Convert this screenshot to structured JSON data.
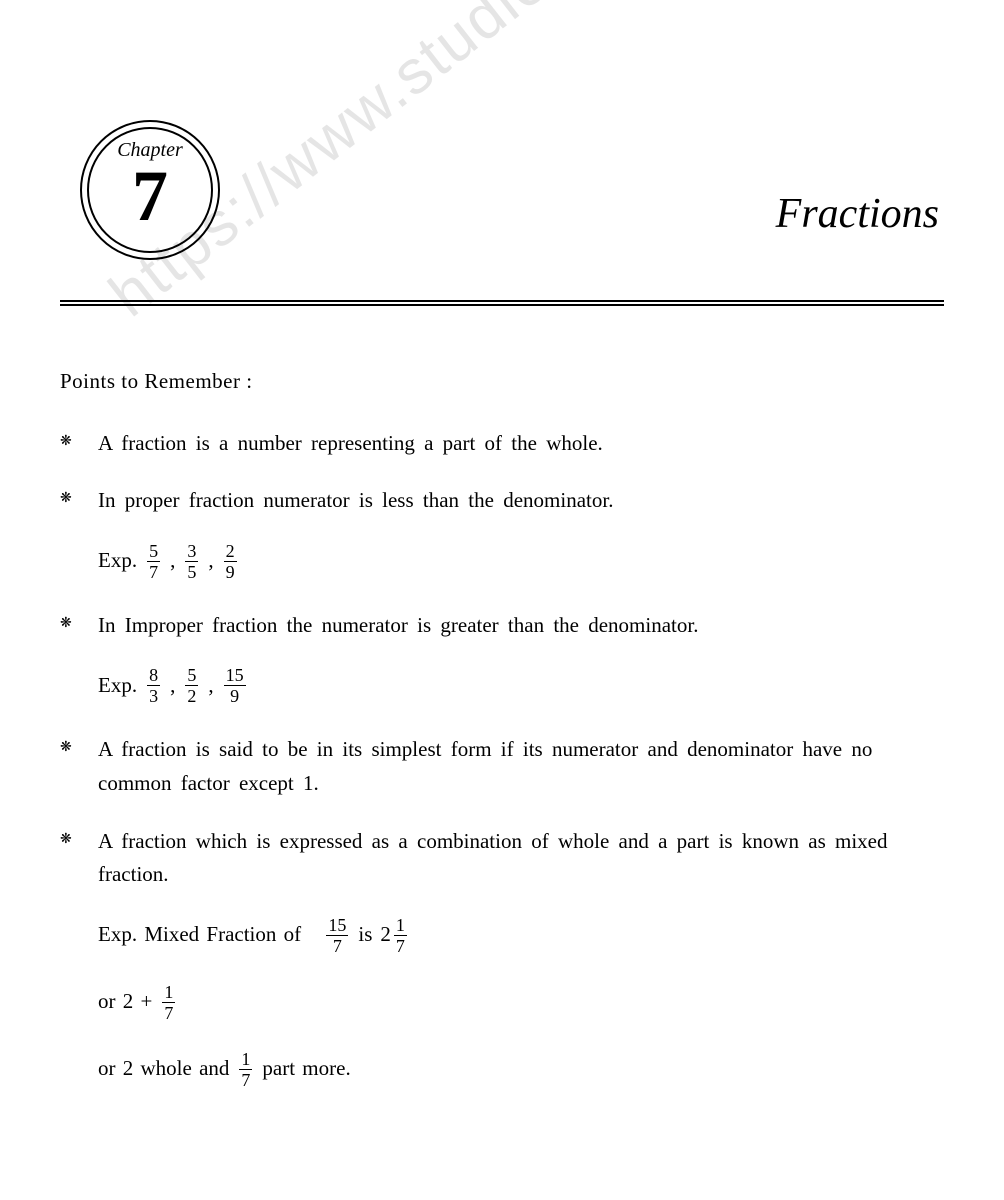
{
  "chapter": {
    "label": "Chapter",
    "number": "7",
    "title": "Fractions"
  },
  "watermark": "https://www.studiestoday.com",
  "section_heading": "Points to Remember :",
  "bullets": [
    {
      "symbol": "❋",
      "text": "A fraction is a number representing a part of the whole."
    },
    {
      "symbol": "❋",
      "text": "In proper fraction numerator is less than the denominator."
    },
    {
      "symbol": "❋",
      "text": "In Improper fraction the numerator is greater than the denominator."
    },
    {
      "symbol": "❋",
      "text": "A fraction is said to be in its simplest form if its numerator and denominator have no common factor except 1."
    },
    {
      "symbol": "❋",
      "text": "A fraction which is expressed as a combination of whole and a part is known as mixed fraction."
    }
  ],
  "examples": {
    "proper": {
      "label": "Exp.",
      "fractions": [
        {
          "num": "5",
          "den": "7"
        },
        {
          "num": "3",
          "den": "5"
        },
        {
          "num": "2",
          "den": "9"
        }
      ]
    },
    "improper": {
      "label": "Exp.",
      "fractions": [
        {
          "num": "8",
          "den": "3"
        },
        {
          "num": "5",
          "den": "2"
        },
        {
          "num": "15",
          "den": "9"
        }
      ]
    },
    "mixed": {
      "label": "Exp. Mixed Fraction of",
      "from": {
        "num": "15",
        "den": "7"
      },
      "is_word": "is",
      "result": {
        "whole": "2",
        "num": "1",
        "den": "7"
      },
      "line2_prefix": "or 2 +",
      "line2_frac": {
        "num": "1",
        "den": "7"
      },
      "line3_prefix": "or 2 whole and",
      "line3_frac": {
        "num": "1",
        "den": "7"
      },
      "line3_suffix": "part more."
    }
  },
  "colors": {
    "text": "#000000",
    "background": "#ffffff",
    "watermark": "rgba(0,0,0,0.10)"
  }
}
